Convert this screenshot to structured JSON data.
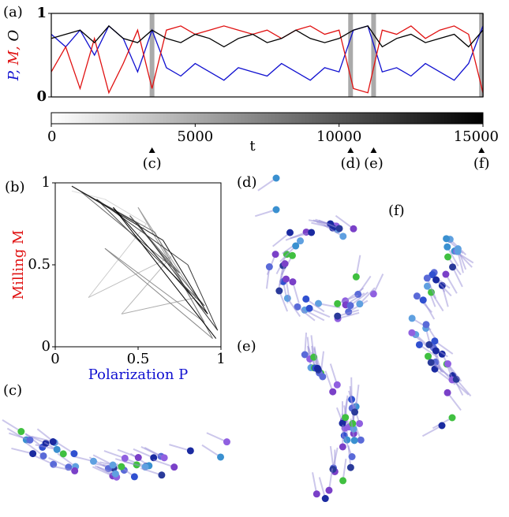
{
  "chart_data": [
    {
      "type": "line",
      "title": "(a)",
      "ylabel": [
        {
          "text": "P",
          "color": "#1010d0"
        },
        {
          "text": ", ",
          "color": "#1010d0"
        },
        {
          "text": "M",
          "color": "#e01010"
        },
        {
          "text": ", ",
          "color": "#e01010"
        },
        {
          "text": "O",
          "color": "#000000"
        }
      ],
      "xlim": [
        0,
        15000
      ],
      "ylim": [
        0,
        1
      ],
      "yticks": [
        0,
        1
      ],
      "x": [
        0,
        500,
        1000,
        1500,
        2000,
        2500,
        3000,
        3500,
        4000,
        4500,
        5000,
        5500,
        6000,
        6500,
        7000,
        7500,
        8000,
        8500,
        9000,
        9500,
        10000,
        10500,
        11000,
        11500,
        12000,
        12500,
        13000,
        13500,
        14000,
        14500,
        15000
      ],
      "series": [
        {
          "name": "P",
          "color": "#1010d0",
          "values": [
            0.75,
            0.6,
            0.8,
            0.5,
            0.85,
            0.7,
            0.3,
            0.8,
            0.35,
            0.25,
            0.4,
            0.3,
            0.2,
            0.35,
            0.3,
            0.25,
            0.4,
            0.3,
            0.2,
            0.35,
            0.3,
            0.8,
            0.85,
            0.3,
            0.35,
            0.25,
            0.4,
            0.3,
            0.2,
            0.4,
            0.85
          ]
        },
        {
          "name": "M",
          "color": "#e01010",
          "values": [
            0.3,
            0.6,
            0.1,
            0.7,
            0.05,
            0.4,
            0.8,
            0.1,
            0.8,
            0.85,
            0.75,
            0.8,
            0.85,
            0.8,
            0.75,
            0.8,
            0.7,
            0.8,
            0.85,
            0.75,
            0.8,
            0.1,
            0.05,
            0.8,
            0.75,
            0.85,
            0.7,
            0.8,
            0.85,
            0.75,
            0.05
          ]
        },
        {
          "name": "O",
          "color": "#000000",
          "values": [
            0.7,
            0.75,
            0.8,
            0.65,
            0.85,
            0.7,
            0.65,
            0.8,
            0.7,
            0.65,
            0.75,
            0.7,
            0.6,
            0.7,
            0.75,
            0.65,
            0.7,
            0.8,
            0.7,
            0.65,
            0.7,
            0.8,
            0.85,
            0.6,
            0.7,
            0.75,
            0.65,
            0.7,
            0.75,
            0.6,
            0.8
          ]
        }
      ],
      "annotations": [
        {
          "label": "(c)",
          "x": 3500
        },
        {
          "label": "(d)",
          "x": 10400
        },
        {
          "label": "(e)",
          "x": 11200
        },
        {
          "label": "(f)",
          "x": 14950
        }
      ],
      "colorbar": {
        "label": "t",
        "ticks": [
          0,
          5000,
          10000,
          15000
        ],
        "colors": [
          "#ffffff",
          "#000000"
        ]
      }
    },
    {
      "type": "trajectory",
      "title": "(b)",
      "xlabel": "Polarization P",
      "xlabel_color": "#1010d0",
      "ylabel": "Milling M",
      "ylabel_color": "#e01010",
      "xlim": [
        0,
        1
      ],
      "ylim": [
        0,
        1
      ],
      "xticks": [
        0,
        0.5,
        1
      ],
      "yticks": [
        0,
        0.5,
        1
      ],
      "colors": [
        "#dddddd",
        "#000000"
      ],
      "x": [
        0.1,
        0.3,
        0.55,
        0.2,
        0.7,
        0.4,
        0.85,
        0.5,
        0.9,
        0.3,
        0.95,
        0.6,
        0.15,
        0.75,
        0.45,
        0.9,
        0.25,
        0.8,
        0.98,
        0.5,
        0.1,
        0.65,
        0.92,
        0.35,
        0.97
      ],
      "y": [
        0.95,
        0.9,
        0.75,
        0.3,
        0.55,
        0.2,
        0.3,
        0.85,
        0.15,
        0.6,
        0.05,
        0.7,
        0.95,
        0.45,
        0.8,
        0.25,
        0.9,
        0.5,
        0.1,
        0.75,
        0.98,
        0.65,
        0.2,
        0.85,
        0.05
      ]
    }
  ],
  "panels": [
    "(c)",
    "(d)",
    "(e)",
    "(f)"
  ]
}
